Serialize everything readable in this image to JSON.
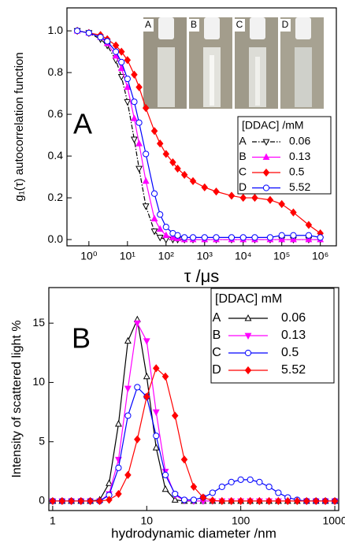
{
  "chart_data": [
    {
      "type": "line",
      "x_scale": "log",
      "panel_label": "A",
      "y_label": "g₁(τ) autocorrelation function",
      "x_label": "τ /μs",
      "photo_labels": [
        "A",
        "B",
        "C",
        "D"
      ],
      "legend_title": "[DDAC] /mM",
      "xlim": [
        0.27,
        2600000
      ],
      "ylim": [
        -0.03,
        1.11
      ],
      "xticks": [
        {
          "value": 1,
          "label": "10⁰"
        },
        {
          "value": 10,
          "label": "10¹"
        },
        {
          "value": 100,
          "label": "10²"
        },
        {
          "value": 1000,
          "label": "10³"
        },
        {
          "value": 10000,
          "label": "10⁴"
        },
        {
          "value": 100000,
          "label": "10⁵"
        },
        {
          "value": 1000000,
          "label": "10⁶"
        }
      ],
      "yticks": [
        {
          "value": 0,
          "label": "0.0"
        },
        0.2,
        0.4,
        0.6,
        0.8,
        {
          "value": 1,
          "label": "1.0"
        }
      ],
      "x": [
        0.5,
        1,
        2,
        3,
        5,
        7,
        10,
        15,
        20,
        30,
        50,
        70,
        100,
        150,
        200,
        300,
        500,
        1000,
        2000,
        5000,
        10000,
        20000,
        50000,
        100000,
        200000,
        500000,
        1000000
      ],
      "series": [
        {
          "name": "A",
          "concentration": "0.06",
          "color": "#000000",
          "marker": "triangle-down",
          "filled": false,
          "line_style": "dashdot",
          "values": [
            1.0,
            0.99,
            0.96,
            0.93,
            0.86,
            0.78,
            0.66,
            0.48,
            0.34,
            0.16,
            0.04,
            0.01,
            0.0,
            0,
            0,
            0,
            0,
            0,
            0,
            0,
            0,
            0,
            0,
            0,
            0,
            0,
            0
          ]
        },
        {
          "name": "B",
          "concentration": "0.13",
          "color": "#ff00ff",
          "marker": "triangle-up",
          "filled": true,
          "line_style": "solid",
          "values": [
            1.0,
            0.99,
            0.97,
            0.94,
            0.88,
            0.82,
            0.73,
            0.58,
            0.46,
            0.28,
            0.1,
            0.05,
            0.02,
            0.01,
            0.005,
            0,
            0,
            0,
            0,
            0,
            0,
            0,
            0,
            0,
            0,
            0,
            0
          ]
        },
        {
          "name": "C",
          "concentration": "0.5",
          "color": "#ff0000",
          "marker": "diamond",
          "filled": true,
          "line_style": "solid",
          "values": [
            1.0,
            0.99,
            0.98,
            0.96,
            0.93,
            0.9,
            0.86,
            0.79,
            0.73,
            0.63,
            0.52,
            0.46,
            0.41,
            0.37,
            0.34,
            0.31,
            0.28,
            0.25,
            0.23,
            0.21,
            0.2,
            0.2,
            0.19,
            0.17,
            0.13,
            0.07,
            0.03
          ]
        },
        {
          "name": "D",
          "concentration": "5.52",
          "color": "#0000ff",
          "marker": "circle",
          "filled": false,
          "line_style": "solid",
          "values": [
            1.0,
            0.99,
            0.97,
            0.95,
            0.9,
            0.85,
            0.77,
            0.66,
            0.56,
            0.41,
            0.22,
            0.12,
            0.06,
            0.03,
            0.02,
            0.01,
            0.01,
            0.01,
            0.01,
            0.01,
            0.01,
            0.01,
            0.01,
            0.02,
            0.02,
            0.02,
            0.01
          ]
        }
      ]
    },
    {
      "type": "line",
      "x_scale": "log",
      "panel_label": "B",
      "y_label": "Intensity of scattered light %",
      "x_label": "hydrodynamic diameter /nm",
      "legend_title": "[DDAC] mM",
      "xlim": [
        0.91,
        1100
      ],
      "ylim": [
        -0.8,
        18
      ],
      "xticks": [
        1,
        10,
        100,
        1000
      ],
      "yticks": [
        0,
        5,
        10,
        15
      ],
      "x": [
        1,
        1.26,
        1.58,
        2,
        2.51,
        3.16,
        3.98,
        5.01,
        6.31,
        7.94,
        10,
        12.6,
        15.8,
        20,
        25.1,
        31.6,
        39.8,
        50.1,
        63.1,
        79.4,
        100,
        126,
        158,
        200,
        251,
        316,
        398,
        501,
        631,
        794,
        1000
      ],
      "series": [
        {
          "name": "A",
          "concentration": "0.06",
          "color": "#000000",
          "marker": "triangle-up",
          "filled": false,
          "line_style": "solid",
          "values": [
            0,
            0,
            0,
            0,
            0,
            0.1,
            1.5,
            6.5,
            13.5,
            15.3,
            10.5,
            4.5,
            1.0,
            0.1,
            0,
            0,
            0,
            0,
            0,
            0,
            0,
            0,
            0,
            0,
            0,
            0,
            0,
            0,
            0,
            0,
            0
          ]
        },
        {
          "name": "B",
          "concentration": "0.13",
          "color": "#ff00ff",
          "marker": "triangle-down",
          "filled": true,
          "line_style": "solid",
          "values": [
            0,
            0,
            0,
            0,
            0,
            0,
            0.6,
            3.5,
            9.5,
            15.0,
            13.5,
            7.5,
            2.5,
            0.5,
            0.05,
            0,
            0,
            0,
            0,
            0,
            0,
            0,
            0,
            0,
            0,
            0,
            0,
            0,
            0,
            0,
            0
          ]
        },
        {
          "name": "C",
          "concentration": "0.5",
          "color": "#0000ff",
          "marker": "circle",
          "filled": false,
          "line_style": "solid",
          "values": [
            0,
            0,
            0,
            0,
            0,
            0,
            0.5,
            2.8,
            7.2,
            9.6,
            8.8,
            5.5,
            2.2,
            0.6,
            0.1,
            0.1,
            0.3,
            0.7,
            1.2,
            1.6,
            1.8,
            1.8,
            1.6,
            1.2,
            0.7,
            0.3,
            0.1,
            0,
            0,
            0,
            0
          ]
        },
        {
          "name": "D",
          "concentration": "5.52",
          "color": "#ff0000",
          "marker": "diamond",
          "filled": true,
          "line_style": "solid",
          "values": [
            0,
            0,
            0,
            0,
            0,
            0,
            0.1,
            0.6,
            2.2,
            5.2,
            8.8,
            11.2,
            10.5,
            7.2,
            3.5,
            1.2,
            0.3,
            0.05,
            0,
            0,
            0,
            0,
            0,
            0,
            0,
            0,
            0,
            0,
            0,
            0,
            0
          ]
        }
      ]
    }
  ]
}
